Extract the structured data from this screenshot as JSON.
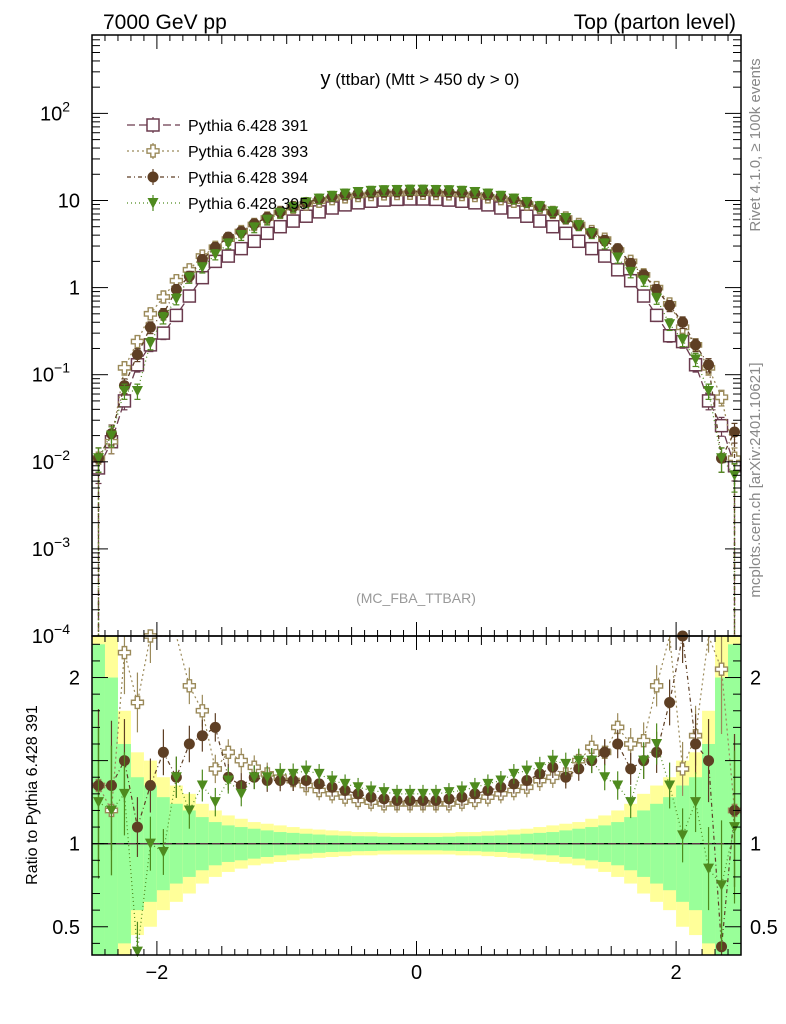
{
  "header": {
    "left_title": "7000 GeV pp",
    "right_title": "Top (parton level)"
  },
  "side_labels": {
    "rivet": "Rivet 4.1.0, ≥ 100k events",
    "mcplots": "mcplots.cern.ch [arXiv:2401.10621]"
  },
  "chart_data": {
    "type": "line",
    "title_main": "y",
    "title_rest": "(ttbar) (Mtt > 450 dy > 0)",
    "analysis_tag": "(MC_FBA_TTBAR)",
    "xlabel": "",
    "ylabel_main": "",
    "ylabel_ratio": "Ratio to Pythia 6.428 391",
    "xlim": [
      -2.5,
      2.5
    ],
    "ylim_main_log10": [
      -4,
      2.9
    ],
    "ylim_ratio": [
      0.33,
      2.25
    ],
    "x_ticks": [
      -2,
      0,
      2
    ],
    "x_tick_labels": [
      "−2",
      "0",
      "2"
    ],
    "main_y_ticks": [
      {
        "exp": 2,
        "base": "10",
        "sup": "2"
      },
      {
        "exp": 1,
        "base": "10",
        "sup": ""
      },
      {
        "exp": 0,
        "base": "1",
        "sup": ""
      },
      {
        "exp": -1,
        "base": "10",
        "sup": "−1"
      },
      {
        "exp": -2,
        "base": "10",
        "sup": "−2"
      },
      {
        "exp": -3,
        "base": "10",
        "sup": "−3"
      },
      {
        "exp": -4,
        "base": "10",
        "sup": "−4"
      }
    ],
    "ratio_y_ticks": [
      {
        "value": 2,
        "label": "2"
      },
      {
        "value": 1,
        "label": "1"
      },
      {
        "value": 0.5,
        "label": "0.5"
      }
    ],
    "x": [
      -2.45,
      -2.35,
      -2.25,
      -2.15,
      -2.05,
      -1.95,
      -1.85,
      -1.75,
      -1.65,
      -1.55,
      -1.45,
      -1.35,
      -1.25,
      -1.15,
      -1.05,
      -0.95,
      -0.85,
      -0.75,
      -0.65,
      -0.55,
      -0.45,
      -0.35,
      -0.25,
      -0.15,
      -0.05,
      0.05,
      0.15,
      0.25,
      0.35,
      0.45,
      0.55,
      0.65,
      0.75,
      0.85,
      0.95,
      1.05,
      1.15,
      1.25,
      1.35,
      1.45,
      1.55,
      1.65,
      1.75,
      1.85,
      1.95,
      2.05,
      2.15,
      2.25,
      2.35,
      2.45
    ],
    "series": [
      {
        "name": "Pythia 6.428 391",
        "color": "#6b3b4e",
        "marker": "open-square",
        "dash": "8,4",
        "values": [
          0.0085,
          0.017,
          0.05,
          0.13,
          0.22,
          0.3,
          0.48,
          0.8,
          1.3,
          2.0,
          2.3,
          2.8,
          3.4,
          4.2,
          5.0,
          5.8,
          6.6,
          7.4,
          8.2,
          8.9,
          9.4,
          9.8,
          10.1,
          10.3,
          10.4,
          10.4,
          10.3,
          10.1,
          9.8,
          9.4,
          8.9,
          8.2,
          7.4,
          6.6,
          5.8,
          5.0,
          4.2,
          3.4,
          2.8,
          2.3,
          1.6,
          1.2,
          0.8,
          0.48,
          0.28,
          0.24,
          0.13,
          0.05,
          0.026,
          0.009
        ]
      },
      {
        "name": "Pythia 6.428 393",
        "color": "#9b8a5a",
        "marker": "open-cross",
        "dash": "2,3",
        "values": [
          0.011,
          0.017,
          0.12,
          0.24,
          0.5,
          0.78,
          1.2,
          1.6,
          2.3,
          2.9,
          3.6,
          4.4,
          5.3,
          6.3,
          7.3,
          8.3,
          9.1,
          9.8,
          10.5,
          11.0,
          11.4,
          11.7,
          11.9,
          12.0,
          12.1,
          12.1,
          12.0,
          11.9,
          11.7,
          11.4,
          11.0,
          10.5,
          9.8,
          9.1,
          8.3,
          7.3,
          6.3,
          5.3,
          4.4,
          3.6,
          2.7,
          2.0,
          1.4,
          1.0,
          0.65,
          0.35,
          0.22,
          0.12,
          0.055,
          0.011
        ]
      },
      {
        "name": "Pythia 6.428 394",
        "color": "#5e3f24",
        "marker": "filled-circle",
        "dash": "4,3,1,3",
        "values": [
          0.011,
          0.021,
          0.075,
          0.17,
          0.35,
          0.5,
          0.95,
          1.35,
          2.1,
          2.9,
          3.8,
          4.4,
          5.4,
          6.4,
          7.4,
          8.5,
          9.5,
          10.4,
          11.1,
          11.6,
          12.0,
          12.3,
          12.5,
          12.6,
          12.7,
          12.7,
          12.6,
          12.5,
          12.3,
          12.0,
          11.6,
          11.1,
          10.4,
          9.5,
          8.5,
          7.3,
          6.2,
          5.2,
          4.3,
          3.5,
          2.8,
          1.9,
          1.4,
          0.95,
          0.62,
          0.4,
          0.22,
          0.13,
          0.011,
          0.022
        ]
      },
      {
        "name": "Pythia 6.428 395",
        "color": "#4e8a1e",
        "marker": "filled-triangle-down",
        "dash": "1,3",
        "values": [
          0.011,
          0.02,
          0.065,
          0.065,
          0.23,
          0.45,
          0.74,
          1.3,
          1.7,
          2.4,
          3.2,
          4.0,
          4.9,
          6.0,
          7.2,
          8.4,
          9.5,
          10.5,
          11.3,
          12.0,
          12.5,
          12.9,
          13.1,
          13.2,
          13.3,
          13.3,
          13.2,
          13.1,
          12.9,
          12.5,
          12.0,
          11.3,
          10.5,
          9.6,
          8.6,
          7.5,
          6.3,
          5.2,
          4.2,
          3.2,
          2.2,
          1.5,
          1.2,
          0.75,
          0.38,
          0.25,
          0.15,
          0.065,
          0.011,
          0.007
        ]
      }
    ],
    "ratio_series": [
      {
        "name": "Pythia 6.428 393",
        "values": [
          1.35,
          1.2,
          2.15,
          1.85,
          2.25,
          2.65,
          2.5,
          1.95,
          1.8,
          1.45,
          1.55,
          1.5,
          1.46,
          1.42,
          1.4,
          1.38,
          1.35,
          1.32,
          1.3,
          1.28,
          1.26,
          1.25,
          1.24,
          1.24,
          1.24,
          1.24,
          1.24,
          1.24,
          1.25,
          1.26,
          1.28,
          1.3,
          1.32,
          1.34,
          1.38,
          1.4,
          1.42,
          1.5,
          1.58,
          1.55,
          1.7,
          1.6,
          1.62,
          1.95,
          2.3,
          1.45,
          1.65,
          2.4,
          2.05,
          1.2
        ]
      },
      {
        "name": "Pythia 6.428 394",
        "values": [
          1.35,
          1.35,
          1.5,
          1.1,
          1.35,
          1.55,
          1.4,
          1.6,
          1.65,
          1.7,
          1.4,
          1.35,
          1.4,
          1.38,
          1.38,
          1.38,
          1.38,
          1.36,
          1.34,
          1.32,
          1.3,
          1.28,
          1.27,
          1.26,
          1.26,
          1.26,
          1.26,
          1.27,
          1.28,
          1.3,
          1.32,
          1.34,
          1.36,
          1.38,
          1.42,
          1.46,
          1.4,
          1.45,
          1.5,
          1.55,
          1.6,
          1.45,
          1.5,
          1.55,
          1.85,
          2.25,
          1.6,
          1.5,
          0.38,
          1.2
        ]
      },
      {
        "name": "Pythia 6.428 395",
        "values": [
          1.25,
          1.2,
          1.3,
          0.35,
          1.0,
          0.95,
          1.4,
          1.2,
          1.35,
          1.25,
          1.38,
          1.3,
          1.4,
          1.4,
          1.42,
          1.42,
          1.44,
          1.42,
          1.38,
          1.36,
          1.34,
          1.32,
          1.31,
          1.3,
          1.3,
          1.3,
          1.3,
          1.31,
          1.32,
          1.34,
          1.36,
          1.38,
          1.42,
          1.44,
          1.46,
          1.5,
          1.48,
          1.5,
          1.5,
          1.4,
          1.35,
          1.25,
          1.5,
          1.6,
          1.35,
          1.05,
          1.25,
          0.85,
          0.75,
          1.1
        ]
      }
    ],
    "ratio_band_yellow_halfwidth": [
      1.6,
      1.4,
      0.8,
      0.55,
      0.5,
      0.4,
      0.35,
      0.3,
      0.24,
      0.2,
      0.17,
      0.15,
      0.13,
      0.12,
      0.11,
      0.1,
      0.09,
      0.085,
      0.08,
      0.075,
      0.07,
      0.07,
      0.065,
      0.065,
      0.065,
      0.065,
      0.065,
      0.065,
      0.07,
      0.07,
      0.075,
      0.08,
      0.085,
      0.09,
      0.1,
      0.11,
      0.12,
      0.13,
      0.15,
      0.17,
      0.2,
      0.24,
      0.3,
      0.35,
      0.4,
      0.5,
      0.55,
      0.8,
      1.4,
      1.6
    ],
    "ratio_band_green_halfwidth": [
      1.2,
      1.0,
      0.6,
      0.4,
      0.35,
      0.28,
      0.24,
      0.2,
      0.16,
      0.13,
      0.11,
      0.1,
      0.09,
      0.08,
      0.07,
      0.065,
      0.06,
      0.055,
      0.05,
      0.048,
      0.045,
      0.044,
      0.042,
      0.04,
      0.04,
      0.04,
      0.04,
      0.042,
      0.044,
      0.045,
      0.048,
      0.05,
      0.055,
      0.06,
      0.065,
      0.07,
      0.08,
      0.09,
      0.1,
      0.11,
      0.13,
      0.16,
      0.2,
      0.24,
      0.28,
      0.35,
      0.4,
      0.6,
      1.0,
      1.2
    ],
    "band_colors": {
      "yellow": "#ffff99",
      "green": "#99ff99"
    }
  }
}
